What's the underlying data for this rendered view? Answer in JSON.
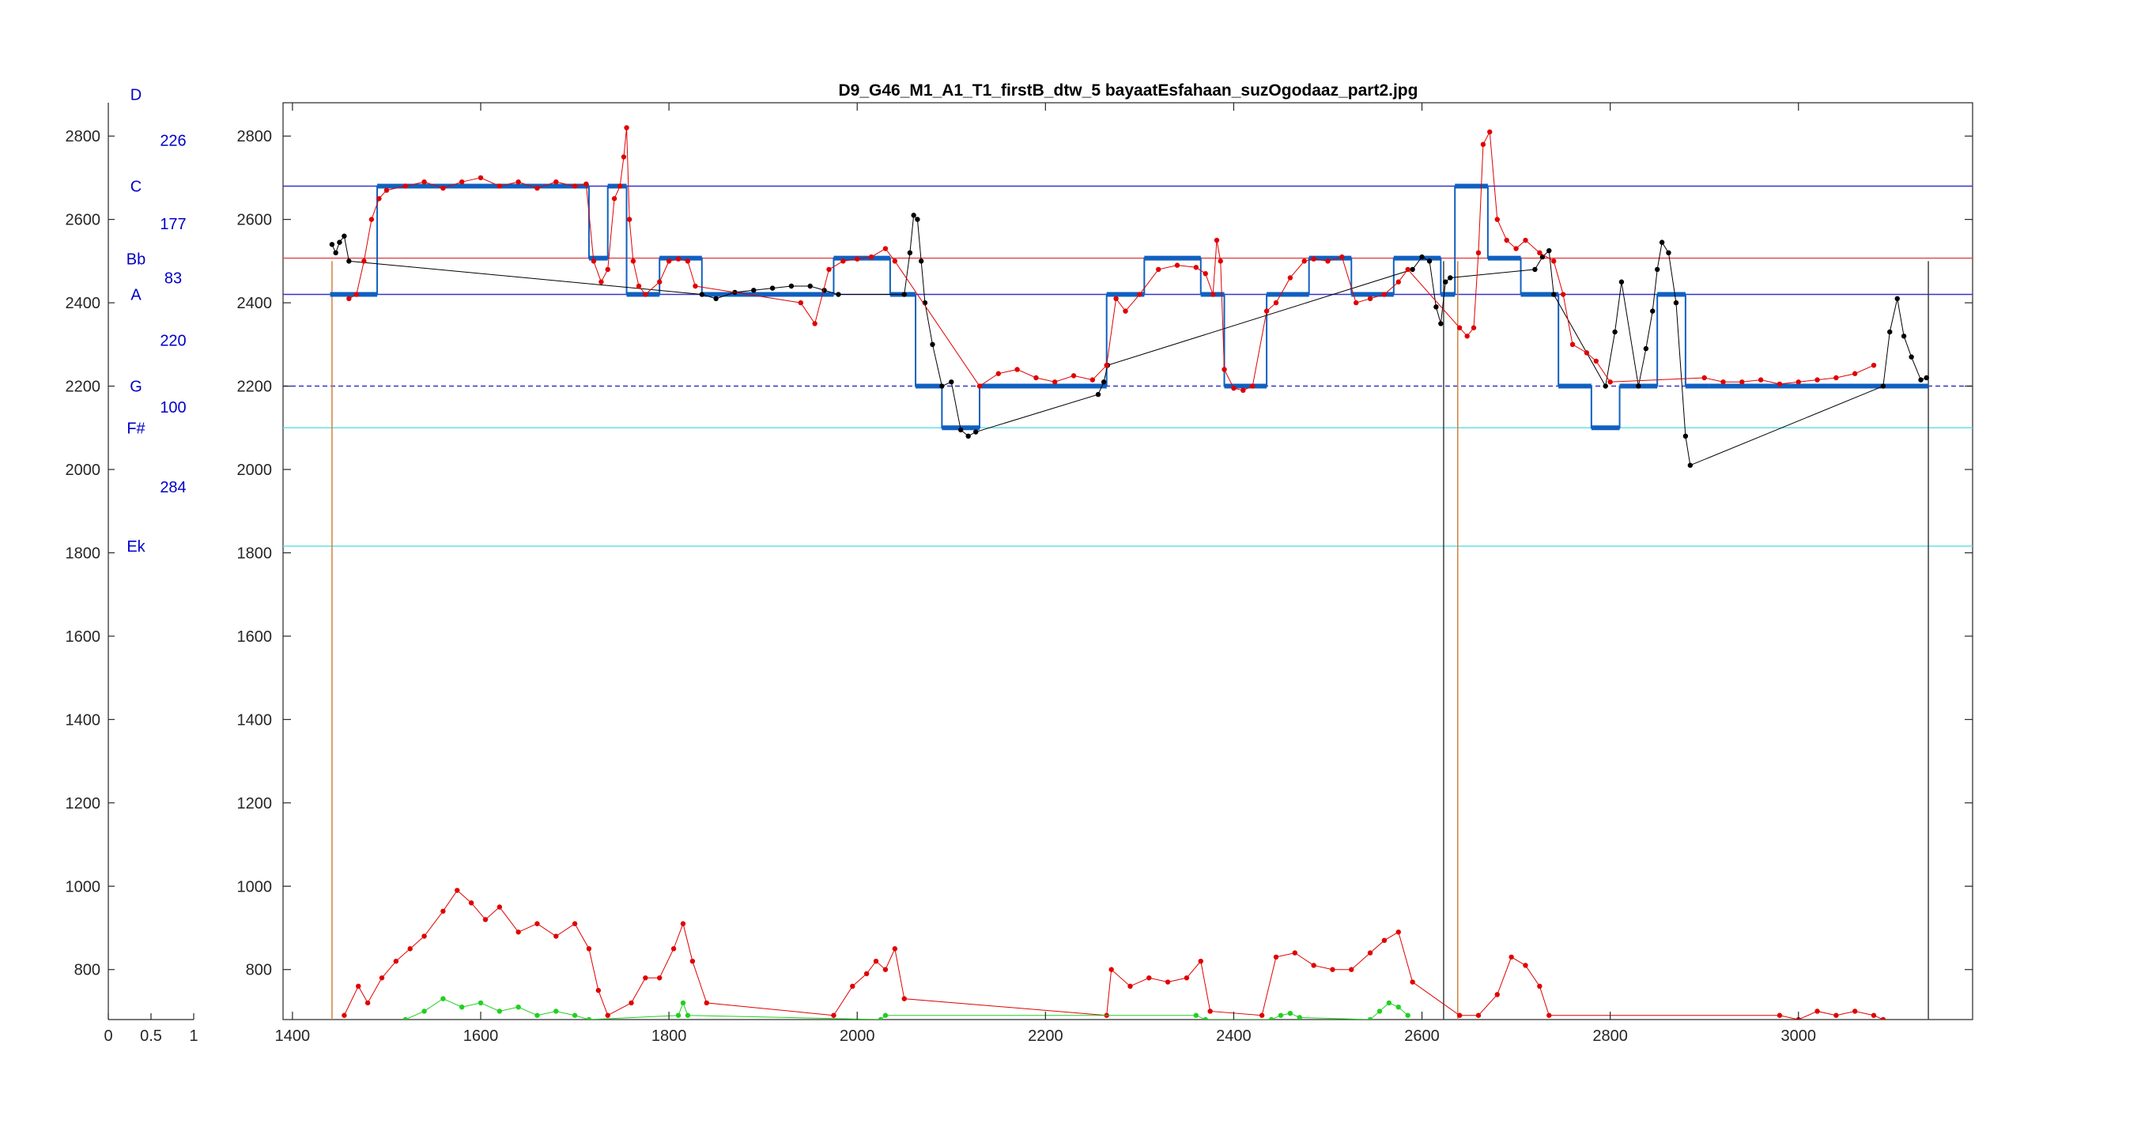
{
  "chart_data": [
    {
      "type": "scale-panel",
      "xlim": [
        0,
        1
      ],
      "ylim": [
        680,
        2880
      ],
      "x_ticks": [
        0,
        0.5,
        1
      ],
      "x_tick_labels": [
        "0",
        "0.5",
        "1"
      ],
      "y_ticks": [
        800,
        1000,
        1200,
        1400,
        1600,
        1800,
        2000,
        2200,
        2400,
        2600,
        2800
      ],
      "y_tick_labels": [
        "800",
        "1000",
        "1200",
        "1400",
        "1600",
        "1800",
        "2000",
        "2200",
        "2400",
        "2600",
        "2800"
      ],
      "note_labels": [
        {
          "text": "D",
          "y": 2900
        },
        {
          "text": "C",
          "y": 2680
        },
        {
          "text": "Bb",
          "y": 2505
        },
        {
          "text": "A",
          "y": 2420
        },
        {
          "text": "G",
          "y": 2200
        },
        {
          "text": "F#",
          "y": 2100
        },
        {
          "text": "Ek",
          "y": 1816
        }
      ],
      "interval_labels": [
        {
          "text": "226",
          "y": 2790
        },
        {
          "text": "177",
          "y": 2590
        },
        {
          "text": "83",
          "y": 2460
        },
        {
          "text": "220",
          "y": 2310
        },
        {
          "text": "100",
          "y": 2150
        },
        {
          "text": "284",
          "y": 1958
        }
      ]
    },
    {
      "type": "line",
      "title": "D9_G46_M1_A1_T1_firstB_dtw_5 bayaatEsfahaan_suzOgodaaz_part2.jpg",
      "xlim": [
        1390,
        3185
      ],
      "ylim": [
        680,
        2880
      ],
      "x_ticks": [
        1400,
        1600,
        1800,
        2000,
        2200,
        2400,
        2600,
        2800,
        3000
      ],
      "x_tick_labels": [
        "1400",
        "1600",
        "1800",
        "2000",
        "2200",
        "2400",
        "2600",
        "2800",
        "3000"
      ],
      "y_ticks": [
        800,
        1000,
        1200,
        1400,
        1600,
        1800,
        2000,
        2200,
        2400,
        2600,
        2800
      ],
      "y_tick_labels": [
        "800",
        "1000",
        "1200",
        "1400",
        "1600",
        "1800",
        "2000",
        "2200",
        "2400",
        "2600",
        "2800"
      ],
      "grid": false,
      "reference_lines": [
        {
          "y": 2680,
          "color": "#3333cc"
        },
        {
          "y": 2507,
          "color": "#e05050"
        },
        {
          "y": 2420,
          "color": "#3333cc"
        },
        {
          "y": 2200,
          "color": "#3333cc",
          "dash": true
        },
        {
          "y": 2100,
          "color": "#66e0e0"
        },
        {
          "y": 1816,
          "color": "#66e0e0"
        }
      ],
      "vertical_lines": [
        {
          "x": 1442,
          "color": "#d08040"
        },
        {
          "x": 2623,
          "color": "#404040"
        },
        {
          "x": 2638,
          "color": "#d08040"
        },
        {
          "x": 3138,
          "color": "#404040"
        }
      ],
      "series": [
        {
          "color": "#1060c0",
          "style": "step",
          "x": [
            1440,
            1490,
            1490,
            1715,
            1715,
            1735,
            1735,
            1755,
            1755,
            1790,
            1790,
            1835,
            1835,
            1975,
            1975,
            2035,
            2035,
            2062,
            2062,
            2090,
            2090,
            2130,
            2130,
            2265,
            2265,
            2305,
            2305,
            2365,
            2365,
            2390,
            2390,
            2435,
            2435,
            2480,
            2480,
            2525,
            2525,
            2570,
            2570,
            2620,
            2620,
            2635,
            2635,
            2670,
            2670,
            2705,
            2705,
            2745,
            2745,
            2780,
            2780,
            2810,
            2810,
            2850,
            2850,
            2880,
            2880,
            2905,
            2905,
            3138
          ],
          "y": [
            2420,
            2420,
            2680,
            2680,
            2507,
            2507,
            2680,
            2680,
            2420,
            2420,
            2507,
            2507,
            2420,
            2420,
            2507,
            2507,
            2420,
            2420,
            2200,
            2200,
            2100,
            2100,
            2200,
            2200,
            2420,
            2420,
            2507,
            2507,
            2420,
            2420,
            2200,
            2200,
            2420,
            2420,
            2507,
            2507,
            2420,
            2420,
            2507,
            2507,
            2420,
            2420,
            2680,
            2680,
            2507,
            2507,
            2420,
            2420,
            2200,
            2200,
            2100,
            2100,
            2200,
            2200,
            2420,
            2420,
            2200,
            2200,
            2200,
            2200
          ]
        },
        {
          "color": "#000000",
          "style": "dots",
          "x": [
            1442,
            1446,
            1450,
            1455,
            1460,
            1835,
            1850,
            1870,
            1890,
            1910,
            1930,
            1950,
            1965,
            1980,
            2050,
            2056,
            2060,
            2064,
            2068,
            2072,
            2080,
            2090,
            2100,
            2110,
            2118,
            2126,
            2256,
            2262,
            2266,
            2590,
            2600,
            2608,
            2615,
            2620,
            2625,
            2630,
            2720,
            2728,
            2735,
            2740,
            2795,
            2805,
            2812,
            2830,
            2838,
            2845,
            2850,
            2855,
            2862,
            2870,
            2880,
            2885,
            3090,
            3097,
            3105,
            3112,
            3120,
            3130,
            3136
          ],
          "y": [
            2540,
            2520,
            2545,
            2560,
            2500,
            2420,
            2410,
            2425,
            2430,
            2435,
            2440,
            2440,
            2430,
            2420,
            2420,
            2520,
            2610,
            2600,
            2500,
            2400,
            2300,
            2200,
            2210,
            2095,
            2080,
            2090,
            2180,
            2210,
            2250,
            2480,
            2510,
            2500,
            2390,
            2350,
            2450,
            2460,
            2480,
            2510,
            2525,
            2420,
            2200,
            2330,
            2450,
            2200,
            2290,
            2380,
            2480,
            2545,
            2520,
            2400,
            2080,
            2010,
            2200,
            2330,
            2410,
            2320,
            2270,
            2215,
            2220
          ]
        },
        {
          "color": "#e00000",
          "style": "dots",
          "x": [
            1460,
            1468,
            1476,
            1484,
            1492,
            1500,
            1520,
            1540,
            1560,
            1580,
            1600,
            1620,
            1640,
            1660,
            1680,
            1700,
            1712,
            1720,
            1728,
            1735,
            1742,
            1748,
            1752,
            1755,
            1758,
            1762,
            1768,
            1775,
            1790,
            1800,
            1810,
            1820,
            1828,
            1940,
            1955,
            1970,
            1985,
            2000,
            2015,
            2030,
            2040,
            2130,
            2150,
            2170,
            2190,
            2210,
            2230,
            2250,
            2265,
            2275,
            2285,
            2300,
            2320,
            2340,
            2360,
            2370,
            2378,
            2382,
            2386,
            2390,
            2400,
            2410,
            2420,
            2435,
            2445,
            2460,
            2475,
            2485,
            2500,
            2515,
            2530,
            2545,
            2560,
            2575,
            2585,
            2640,
            2648,
            2655,
            2660,
            2665,
            2672,
            2680,
            2690,
            2700,
            2710,
            2725,
            2740,
            2750,
            2760,
            2775,
            2785,
            2800,
            2900,
            2920,
            2940,
            2960,
            2980,
            3000,
            3020,
            3040,
            3060,
            3080
          ],
          "y": [
            2410,
            2420,
            2500,
            2600,
            2650,
            2670,
            2680,
            2690,
            2675,
            2690,
            2700,
            2680,
            2690,
            2675,
            2690,
            2680,
            2685,
            2500,
            2450,
            2480,
            2650,
            2680,
            2750,
            2820,
            2600,
            2500,
            2440,
            2420,
            2450,
            2500,
            2505,
            2500,
            2440,
            2400,
            2350,
            2480,
            2500,
            2505,
            2510,
            2530,
            2500,
            2200,
            2230,
            2240,
            2220,
            2210,
            2225,
            2215,
            2250,
            2410,
            2380,
            2420,
            2480,
            2490,
            2485,
            2470,
            2420,
            2550,
            2500,
            2240,
            2195,
            2190,
            2200,
            2380,
            2400,
            2460,
            2500,
            2505,
            2500,
            2510,
            2400,
            2410,
            2420,
            2450,
            2480,
            2340,
            2320,
            2340,
            2520,
            2780,
            2810,
            2600,
            2550,
            2530,
            2550,
            2520,
            2500,
            2420,
            2300,
            2280,
            2260,
            2210,
            2220,
            2210,
            2210,
            2215,
            2205,
            2210,
            2215,
            2220,
            2230,
            2250
          ]
        },
        {
          "color": "#e00000",
          "style": "dots",
          "x": [
            1455,
            1470,
            1480,
            1495,
            1510,
            1525,
            1540,
            1560,
            1575,
            1590,
            1605,
            1620,
            1640,
            1660,
            1680,
            1700,
            1715,
            1725,
            1735,
            1760,
            1775,
            1790,
            1805,
            1815,
            1825,
            1840,
            1975,
            1995,
            2010,
            2020,
            2030,
            2040,
            2050,
            2265,
            2270,
            2290,
            2310,
            2330,
            2350,
            2365,
            2375,
            2430,
            2445,
            2465,
            2485,
            2505,
            2525,
            2545,
            2560,
            2575,
            2590,
            2640,
            2660,
            2680,
            2695,
            2710,
            2725,
            2735,
            2980,
            3000,
            3020,
            3040,
            3060,
            3080,
            3090
          ],
          "y": [
            690,
            760,
            720,
            780,
            820,
            850,
            880,
            940,
            990,
            960,
            920,
            950,
            890,
            910,
            880,
            910,
            850,
            750,
            690,
            720,
            780,
            780,
            850,
            910,
            820,
            720,
            690,
            760,
            790,
            820,
            800,
            850,
            730,
            690,
            800,
            760,
            780,
            770,
            780,
            820,
            700,
            690,
            830,
            840,
            810,
            800,
            800,
            840,
            870,
            890,
            770,
            690,
            690,
            740,
            830,
            810,
            760,
            690,
            690,
            680,
            700,
            690,
            700,
            690,
            680
          ]
        },
        {
          "color": "#20d020",
          "style": "dots",
          "x": [
            1520,
            1540,
            1560,
            1580,
            1600,
            1620,
            1640,
            1660,
            1680,
            1700,
            1715,
            1810,
            1815,
            1820,
            2025,
            2030,
            2360,
            2370,
            2440,
            2450,
            2460,
            2470,
            2545,
            2555,
            2565,
            2575,
            2585
          ],
          "y": [
            680,
            700,
            730,
            710,
            720,
            700,
            710,
            690,
            700,
            690,
            680,
            690,
            720,
            690,
            680,
            690,
            690,
            680,
            680,
            690,
            695,
            685,
            680,
            700,
            720,
            710,
            690
          ]
        }
      ]
    }
  ]
}
